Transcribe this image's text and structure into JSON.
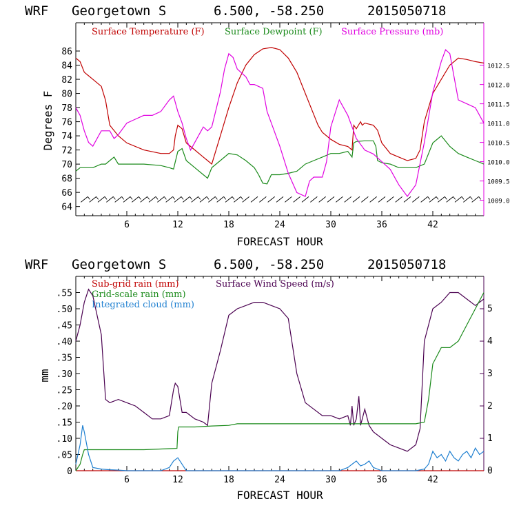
{
  "panels": [
    {
      "header": {
        "model": "WRF",
        "station": "Georgetown S",
        "coords": "6.500, -58.250",
        "run": "2015050718"
      },
      "xlabel": "FORECAST HOUR",
      "ylabel": "Degrees F",
      "legend": [
        {
          "label": "Surface Temperature (F)",
          "color": "#c00000"
        },
        {
          "label": "Surface Dewpoint (F)",
          "color": "#1a8a1a"
        },
        {
          "label": "Surface Pressure (mb)",
          "color": "#e000e0"
        }
      ]
    },
    {
      "header": {
        "model": "WRF",
        "station": "Georgetown S",
        "coords": "6.500, -58.250",
        "run": "2015050718"
      },
      "xlabel": "FORECAST HOUR",
      "ylabel": "mm",
      "legend": [
        {
          "label": "Sub-grid rain (mm)",
          "color": "#c00000"
        },
        {
          "label": "Surface Wind Speed (m/s)",
          "color": "#4a0050"
        },
        {
          "label": "Grid-scale rain (mm)",
          "color": "#1a8a1a"
        },
        {
          "label": "Integrated cloud (mm)",
          "color": "#1e7fd0"
        }
      ]
    }
  ],
  "chart_data": [
    {
      "type": "line",
      "title": "WRF Georgetown S 6.500, -58.250 2015050718",
      "xlabel": "FORECAST HOUR",
      "ylabel": "Degrees F",
      "xlim": [
        0,
        48
      ],
      "xticks": [
        6,
        12,
        18,
        24,
        30,
        36,
        42
      ],
      "ylim": [
        62.7,
        90
      ],
      "yticks": [
        64,
        66,
        68,
        70,
        72,
        74,
        76,
        78,
        80,
        82,
        84,
        86
      ],
      "y2lim": [
        1008.6,
        1013.6
      ],
      "y2ticks": [
        1009.0,
        1009.5,
        1010.0,
        1010.5,
        1011.0,
        1011.5,
        1012.0,
        1012.5
      ],
      "y2tick_labels": [
        "1009.0",
        "1009.5",
        "1010.0",
        "1010.5",
        "1011.0",
        "1011.5",
        "1012.0",
        "1012.5"
      ],
      "series": [
        {
          "name": "Surface Temperature (F)",
          "axis": "left",
          "color": "#c00000",
          "x": [
            0,
            0.5,
            1,
            2,
            3,
            3.5,
            4,
            5,
            6,
            8,
            10,
            11,
            11.5,
            11.7,
            12,
            12.5,
            13,
            14,
            15,
            15.5,
            16,
            17,
            18,
            19,
            20,
            21,
            22,
            23,
            24,
            25,
            26,
            27,
            28,
            28.5,
            29,
            30,
            31,
            32,
            32.5,
            32.7,
            33,
            33.5,
            33.7,
            34,
            35,
            35.5,
            36,
            37,
            38,
            39,
            40,
            40.5,
            41,
            42,
            43,
            44,
            45,
            46,
            47,
            48
          ],
          "y": [
            85,
            84.5,
            83,
            82,
            81,
            79,
            75.5,
            74,
            73,
            72,
            71.5,
            71.5,
            72,
            74,
            75.5,
            75,
            73,
            72,
            71,
            70.5,
            70,
            74,
            78,
            81.5,
            84,
            85.5,
            86.3,
            86.5,
            86.2,
            85,
            83,
            80,
            77,
            75.5,
            74.5,
            73.5,
            72.8,
            72.5,
            72,
            75.5,
            75,
            76,
            75.5,
            75.8,
            75.5,
            74.8,
            73,
            71.5,
            71,
            70.5,
            70.8,
            72,
            76,
            80,
            82,
            84,
            85,
            84.8,
            84.5,
            84.3
          ]
        },
        {
          "name": "Surface Dewpoint (F)",
          "axis": "left",
          "color": "#1a8a1a",
          "x": [
            0,
            0.5,
            1,
            2,
            3,
            3.5,
            4,
            4.5,
            5,
            6,
            8,
            10,
            11,
            11.5,
            12,
            12.5,
            13,
            14,
            15,
            15.5,
            16,
            17,
            18,
            19,
            20,
            21,
            21.5,
            22,
            22.5,
            23,
            24,
            25,
            26,
            27,
            28,
            29,
            30,
            31,
            32,
            32.5,
            32.7,
            33,
            34,
            35,
            35.3,
            35.5,
            36,
            37,
            38,
            39,
            40,
            41,
            42,
            43,
            44,
            45,
            46,
            47,
            48
          ],
          "y": [
            69,
            69.5,
            69.5,
            69.5,
            70,
            70,
            70.5,
            71,
            70,
            70,
            70,
            69.8,
            69.5,
            69.3,
            71.8,
            72.2,
            70.5,
            69.5,
            68.5,
            68,
            69.5,
            70.5,
            71.5,
            71.3,
            70.5,
            69.5,
            68.5,
            67.3,
            67.2,
            68.5,
            68.5,
            68.7,
            69,
            70,
            70.5,
            71,
            71.5,
            71.5,
            71.8,
            71,
            73,
            73.2,
            73.3,
            73.3,
            72.5,
            70.5,
            70.2,
            70,
            69.5,
            69.5,
            69.5,
            70,
            73,
            74,
            72.5,
            71.5,
            71,
            70.5,
            70
          ]
        },
        {
          "name": "Surface Pressure (mb)",
          "axis": "right",
          "color": "#e000e0",
          "x": [
            0,
            0.5,
            1,
            1.5,
            2,
            3,
            4,
            4.5,
            5,
            6,
            7,
            8,
            9,
            10,
            11,
            11.5,
            12,
            12.5,
            13,
            13.5,
            14,
            15,
            15.5,
            16,
            17,
            17.5,
            18,
            18.5,
            19,
            20,
            20.5,
            21,
            22,
            22.5,
            23,
            24,
            25,
            26,
            27,
            27.5,
            28,
            29,
            29.5,
            30,
            31,
            32,
            33,
            34,
            35,
            36,
            37,
            38,
            39,
            40,
            41,
            42,
            43,
            43.5,
            44,
            44.5,
            45,
            46,
            47,
            48
          ],
          "y": [
            1011.4,
            1011.2,
            1010.8,
            1010.5,
            1010.4,
            1010.8,
            1010.8,
            1010.6,
            1010.7,
            1011.0,
            1011.1,
            1011.2,
            1011.2,
            1011.3,
            1011.6,
            1011.7,
            1011.3,
            1011.0,
            1010.6,
            1010.3,
            1010.5,
            1010.9,
            1010.8,
            1010.9,
            1011.8,
            1012.4,
            1012.8,
            1012.7,
            1012.4,
            1012.2,
            1012.0,
            1012.0,
            1011.9,
            1011.3,
            1011.0,
            1010.4,
            1009.7,
            1009.2,
            1009.1,
            1009.5,
            1009.6,
            1009.6,
            1010.0,
            1010.9,
            1011.6,
            1011.2,
            1010.6,
            1010.3,
            1010.2,
            1010.0,
            1009.8,
            1009.4,
            1009.1,
            1009.4,
            1010.5,
            1011.8,
            1012.6,
            1012.9,
            1012.8,
            1012.2,
            1011.6,
            1011.5,
            1011.4,
            1011.0
          ]
        }
      ],
      "wind_barbs": "row of wind barbs near 65 F across all forecast hours"
    },
    {
      "type": "line",
      "title": "WRF Georgetown S 6.500, -58.250 2015050718",
      "xlabel": "FORECAST HOUR",
      "ylabel": "mm",
      "xlim": [
        0,
        48
      ],
      "xticks": [
        6,
        12,
        18,
        24,
        30,
        36,
        42
      ],
      "ylim": [
        0,
        0.6
      ],
      "yticks": [
        0,
        0.05,
        0.1,
        0.15,
        0.2,
        0.25,
        0.3,
        0.35,
        0.4,
        0.45,
        0.5,
        0.55
      ],
      "ytick_labels": [
        "0",
        ".05",
        ".10",
        ".15",
        ".20",
        ".25",
        ".30",
        ".35",
        ".40",
        ".45",
        ".50",
        ".55"
      ],
      "y2lim": [
        0,
        6
      ],
      "y2ticks": [
        0,
        1,
        2,
        3,
        4,
        5
      ],
      "y2tick_labels": [
        "0",
        "1",
        "2",
        "3",
        "4",
        "5"
      ],
      "series": [
        {
          "name": "Sub-grid rain (mm)",
          "axis": "left",
          "color": "#c00000",
          "x": [
            0,
            48
          ],
          "y": [
            0,
            0
          ]
        },
        {
          "name": "Surface Wind Speed (m/s)",
          "axis": "right",
          "color": "#4a0050",
          "x": [
            0,
            0.5,
            1,
            1.5,
            2,
            3,
            3.5,
            4,
            5,
            6,
            7,
            8,
            9,
            10,
            11,
            11.5,
            11.7,
            12,
            12.5,
            13,
            14,
            15,
            15.5,
            16,
            17,
            18,
            19,
            20,
            21,
            22,
            23,
            24,
            25,
            26,
            27,
            28,
            29,
            30,
            31,
            32,
            32.3,
            32.5,
            32.7,
            33,
            33.3,
            33.5,
            34,
            34.5,
            35,
            36,
            37,
            38,
            39,
            40,
            40.5,
            41,
            42,
            43,
            44,
            45,
            46,
            47,
            48
          ],
          "y": [
            4.0,
            4.5,
            5.2,
            5.6,
            5.4,
            4.2,
            2.2,
            2.1,
            2.2,
            2.1,
            2.0,
            1.8,
            1.6,
            1.6,
            1.7,
            2.5,
            2.7,
            2.6,
            1.8,
            1.8,
            1.6,
            1.5,
            1.4,
            2.7,
            3.7,
            4.8,
            5.0,
            5.1,
            5.2,
            5.2,
            5.1,
            5.0,
            4.7,
            3.0,
            2.1,
            1.9,
            1.7,
            1.7,
            1.6,
            1.7,
            1.4,
            2.0,
            1.4,
            1.6,
            2.3,
            1.4,
            1.9,
            1.4,
            1.2,
            1.0,
            0.8,
            0.7,
            0.6,
            0.8,
            1.3,
            4.0,
            5.0,
            5.2,
            5.5,
            5.5,
            5.3,
            5.1,
            5.3
          ]
        },
        {
          "name": "Grid-scale rain (mm)",
          "axis": "left",
          "color": "#1a8a1a",
          "x": [
            0,
            0.5,
            0.8,
            1,
            2,
            4,
            6,
            8,
            10,
            11,
            11.9,
            12.0,
            12.1,
            14,
            16,
            18,
            19,
            20,
            22,
            24,
            26,
            28,
            30,
            32,
            34,
            36,
            38,
            40,
            41,
            41.5,
            42,
            43,
            44,
            45,
            46,
            47,
            48
          ],
          "y": [
            0,
            0.02,
            0.05,
            0.065,
            0.065,
            0.065,
            0.065,
            0.065,
            0.067,
            0.068,
            0.069,
            0.12,
            0.135,
            0.135,
            0.138,
            0.14,
            0.145,
            0.145,
            0.145,
            0.145,
            0.145,
            0.145,
            0.145,
            0.145,
            0.145,
            0.145,
            0.145,
            0.145,
            0.15,
            0.22,
            0.33,
            0.38,
            0.38,
            0.4,
            0.45,
            0.5,
            0.55
          ]
        },
        {
          "name": "Integrated cloud (mm)",
          "axis": "left",
          "color": "#1e7fd0",
          "x": [
            0,
            0.5,
            0.8,
            1,
            1.5,
            2,
            3,
            4,
            5,
            6,
            8,
            10,
            11,
            11.5,
            12,
            12.5,
            13,
            14,
            16,
            18,
            20,
            24,
            28,
            30,
            31,
            32,
            32.5,
            33,
            33.5,
            34,
            34.5,
            35,
            36,
            38,
            40,
            41,
            41.5,
            42,
            42.5,
            43,
            43.5,
            44,
            44.5,
            45,
            45.5,
            46,
            46.5,
            47,
            47.5,
            48
          ],
          "y": [
            0.02,
            0.08,
            0.14,
            0.12,
            0.05,
            0.01,
            0.005,
            0.003,
            0.002,
            0.0,
            0.0,
            0.0,
            0.01,
            0.03,
            0.04,
            0.02,
            0.0,
            0.0,
            0.0,
            0.0,
            0.0,
            0.0,
            0.0,
            0.0,
            0.0,
            0.01,
            0.02,
            0.03,
            0.015,
            0.02,
            0.03,
            0.01,
            0.0,
            0.0,
            0.0,
            0.005,
            0.02,
            0.06,
            0.04,
            0.05,
            0.03,
            0.06,
            0.04,
            0.03,
            0.05,
            0.06,
            0.04,
            0.07,
            0.05,
            0.06
          ]
        }
      ]
    }
  ]
}
